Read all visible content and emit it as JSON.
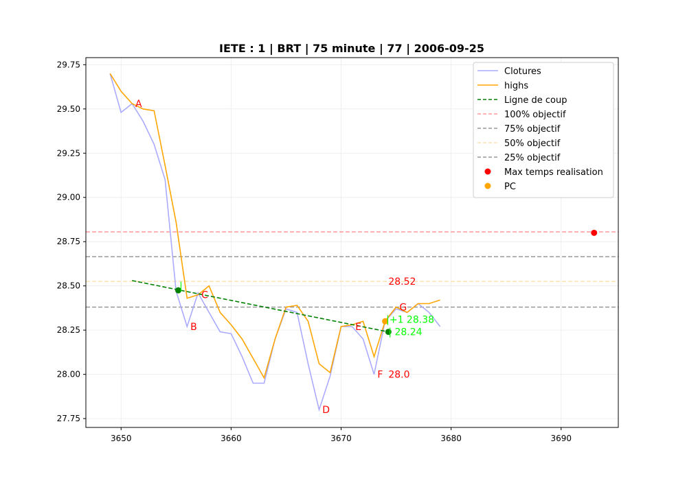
{
  "chart_data": {
    "type": "line",
    "title": "IETE : 1 | BRT | 75 minute | 77 | 2006-09-25",
    "xlim": [
      3646.8,
      3695.2
    ],
    "ylim": [
      27.7,
      29.79
    ],
    "xticks": [
      3650,
      3660,
      3670,
      3680,
      3690
    ],
    "yticks": [
      27.75,
      28.0,
      28.25,
      28.5,
      28.75,
      29.0,
      29.25,
      29.5,
      29.75
    ],
    "xtick_labels": [
      "3650",
      "3660",
      "3670",
      "3680",
      "3690"
    ],
    "ytick_labels": [
      "27.75",
      "28.00",
      "28.25",
      "28.50",
      "28.75",
      "29.00",
      "29.25",
      "29.50",
      "29.75"
    ],
    "grid": true,
    "legend_position": "top-right",
    "series": [
      {
        "name": "Clotures",
        "color": "#aaaaff",
        "x": [
          3649,
          3650,
          3651,
          3652,
          3653,
          3654,
          3655,
          3656,
          3657,
          3658,
          3659,
          3660,
          3661,
          3662,
          3663,
          3664,
          3665,
          3666,
          3667,
          3668,
          3669,
          3670,
          3671,
          3672,
          3673,
          3674,
          3675,
          3676,
          3677,
          3678,
          3679
        ],
        "y": [
          29.7,
          29.48,
          29.53,
          29.43,
          29.3,
          29.1,
          28.47,
          28.27,
          28.46,
          28.35,
          28.24,
          28.23,
          28.1,
          27.95,
          27.95,
          28.2,
          28.37,
          28.35,
          28.06,
          27.8,
          27.99,
          28.27,
          28.27,
          28.2,
          28.0,
          28.3,
          28.37,
          28.35,
          28.4,
          28.35,
          28.27
        ]
      },
      {
        "name": "highs",
        "color": "#ffa500",
        "x": [
          3649,
          3650,
          3651,
          3652,
          3653,
          3654,
          3655,
          3656,
          3657,
          3658,
          3659,
          3660,
          3661,
          3662,
          3663,
          3664,
          3665,
          3666,
          3667,
          3668,
          3669,
          3670,
          3671,
          3672,
          3673,
          3674,
          3675,
          3676,
          3677,
          3678,
          3679
        ],
        "y": [
          29.7,
          29.6,
          29.53,
          29.5,
          29.49,
          29.18,
          28.86,
          28.43,
          28.45,
          28.5,
          28.35,
          28.28,
          28.2,
          28.09,
          27.98,
          28.2,
          28.38,
          28.39,
          28.3,
          28.06,
          28.01,
          28.27,
          28.28,
          28.3,
          28.1,
          28.3,
          28.38,
          28.35,
          28.4,
          28.4,
          28.42
        ]
      }
    ],
    "trade_line": {
      "name": "Ligne de coup",
      "color": "#008000",
      "x": [
        3651,
        3674.7
      ],
      "y": [
        28.53,
        28.235
      ]
    },
    "hlines": [
      {
        "name": "100% objectif",
        "y": 28.805,
        "color": "#ff9999",
        "dashed": true
      },
      {
        "name": "75% objectif",
        "y": 28.665,
        "color": "#999999",
        "dashed": true
      },
      {
        "name": "50% objectif",
        "y": 28.525,
        "color": "#ffe0b0",
        "dashed": true
      },
      {
        "name": "25% objectif",
        "y": 28.38,
        "color": "#999999",
        "dashed": true
      }
    ],
    "scatter": [
      {
        "name": "Max temps realisation",
        "color": "#ff0000",
        "x": [
          3693
        ],
        "y": [
          28.8
        ]
      },
      {
        "name": "PC",
        "color": "#ffa500",
        "x": [
          3674
        ],
        "y": [
          28.3
        ]
      }
    ],
    "extra_points": [
      {
        "x": 3655.2,
        "y": 28.475,
        "color": "#008000"
      },
      {
        "x": 3674.3,
        "y": 28.24,
        "color": "#008000"
      }
    ],
    "annotations": [
      {
        "text": "A",
        "x": 3651.3,
        "y": 29.53,
        "color": "#ff0000"
      },
      {
        "text": "B",
        "x": 3656.3,
        "y": 28.27,
        "color": "#ff0000"
      },
      {
        "text": "C",
        "x": 3657.3,
        "y": 28.45,
        "color": "#ff0000"
      },
      {
        "text": "D",
        "x": 3668.3,
        "y": 27.8,
        "color": "#ff0000"
      },
      {
        "text": "E",
        "x": 3671.3,
        "y": 28.27,
        "color": "#ff0000"
      },
      {
        "text": "F",
        "x": 3673.3,
        "y": 28.0,
        "color": "#ff0000"
      },
      {
        "text": "G",
        "x": 3675.3,
        "y": 28.38,
        "color": "#ff0000"
      },
      {
        "text": "28.52",
        "x": 3674.3,
        "y": 28.525,
        "color": "#ff0000"
      },
      {
        "text": "28.0",
        "x": 3674.3,
        "y": 28.0,
        "color": "#ff0000"
      },
      {
        "text": "|",
        "x": 3655.3,
        "y": 28.5,
        "color": "#00ff00"
      },
      {
        "text": "|+1 28.38",
        "x": 3674.1,
        "y": 28.31,
        "color": "#00ff00"
      },
      {
        "text": "| 28.24",
        "x": 3674.3,
        "y": 28.24,
        "color": "#00ff00"
      }
    ]
  }
}
